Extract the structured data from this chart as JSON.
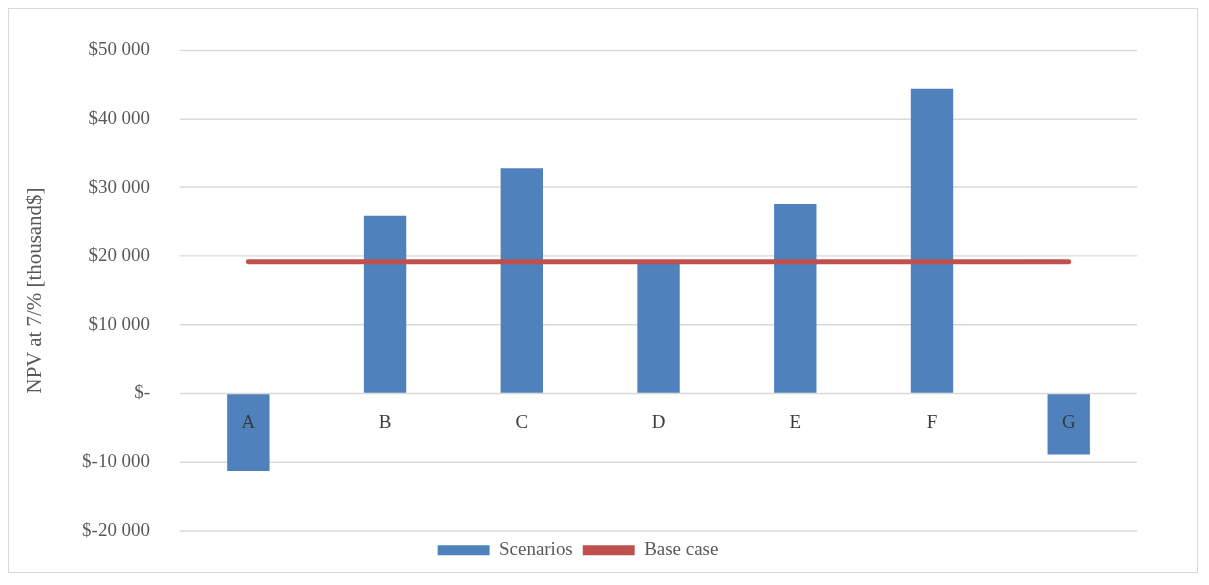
{
  "chart_data": {
    "type": "bar",
    "ylabel": "NPV at 7/% [thousand$]",
    "categories": [
      "A",
      "B",
      "C",
      "D",
      "E",
      "F",
      "G"
    ],
    "series": [
      {
        "name": "Scenarios",
        "color": "#4f81bd",
        "values": [
          -11300,
          25900,
          32800,
          19100,
          27600,
          44400,
          -8900
        ]
      },
      {
        "name": "Base case",
        "type": "line",
        "color": "#c0504d",
        "values": [
          19200,
          19200,
          19200,
          19200,
          19200,
          19200,
          19200
        ]
      }
    ],
    "ylim": [
      -20000,
      50000
    ],
    "yticks": [
      {
        "value": -20000,
        "label": "$-20 000"
      },
      {
        "value": -10000,
        "label": "$-10 000"
      },
      {
        "value": 0,
        "label": "$-"
      },
      {
        "value": 10000,
        "label": "$10 000"
      },
      {
        "value": 20000,
        "label": "$20 000"
      },
      {
        "value": 30000,
        "label": "$30 000"
      },
      {
        "value": 40000,
        "label": "$40 000"
      },
      {
        "value": 50000,
        "label": "$50 000"
      }
    ],
    "grid": "y",
    "legend": "bottom",
    "marker": "none"
  }
}
